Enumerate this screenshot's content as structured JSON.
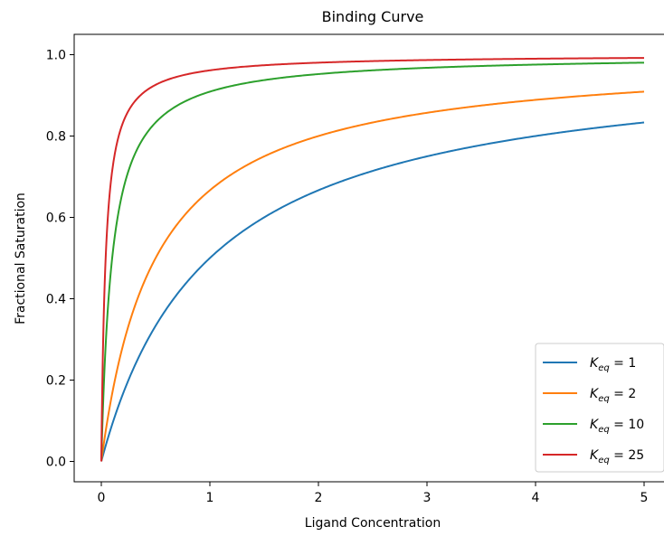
{
  "chart_data": {
    "type": "line",
    "title": "Binding Curve",
    "xlabel": "Ligand Concentration",
    "ylabel": "Fractional Saturation",
    "xlim": [
      -0.25,
      5.25
    ],
    "ylim": [
      -0.05,
      1.05
    ],
    "xticks": [
      0,
      1,
      2,
      3,
      4,
      5
    ],
    "xtick_labels": [
      "0",
      "1",
      "2",
      "3",
      "4",
      "5"
    ],
    "yticks": [
      0.0,
      0.2,
      0.4,
      0.6,
      0.8,
      1.0
    ],
    "ytick_labels": [
      "0.0",
      "0.2",
      "0.4",
      "0.6",
      "0.8",
      "1.0"
    ],
    "grid": false,
    "legend_position": "lower right",
    "model": "y = K*x / (1 + K*x)",
    "x_range": [
      0,
      5
    ],
    "series": [
      {
        "name_base": "K",
        "name_sub": "eq",
        "name_rest": " = 1",
        "K": 1,
        "color": "#1f77b4",
        "x": [
          0,
          0.25,
          0.5,
          1,
          2,
          3,
          4,
          5
        ],
        "values": [
          0,
          0.2,
          0.333,
          0.5,
          0.667,
          0.75,
          0.8,
          0.833
        ]
      },
      {
        "name_base": "K",
        "name_sub": "eq",
        "name_rest": " = 2",
        "K": 2,
        "color": "#ff7f0e",
        "x": [
          0,
          0.25,
          0.5,
          1,
          2,
          3,
          4,
          5
        ],
        "values": [
          0,
          0.333,
          0.5,
          0.667,
          0.8,
          0.857,
          0.889,
          0.909
        ]
      },
      {
        "name_base": "K",
        "name_sub": "eq",
        "name_rest": " = 10",
        "K": 10,
        "color": "#2ca02c",
        "x": [
          0,
          0.05,
          0.1,
          0.25,
          0.5,
          1,
          2,
          5
        ],
        "values": [
          0,
          0.333,
          0.5,
          0.714,
          0.833,
          0.909,
          0.952,
          0.98
        ]
      },
      {
        "name_base": "K",
        "name_sub": "eq",
        "name_rest": " = 25",
        "K": 25,
        "color": "#d62728",
        "x": [
          0,
          0.02,
          0.04,
          0.1,
          0.25,
          0.5,
          1,
          5
        ],
        "values": [
          0,
          0.333,
          0.5,
          0.714,
          0.862,
          0.926,
          0.962,
          0.992
        ]
      }
    ]
  }
}
